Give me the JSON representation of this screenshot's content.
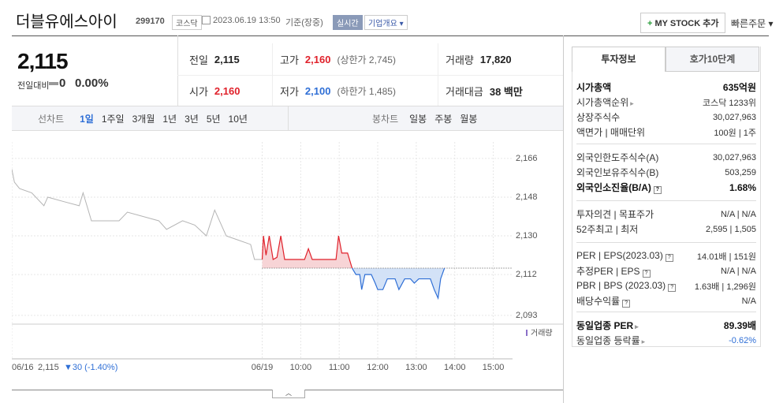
{
  "header": {
    "name": "더블유에스아이",
    "code": "299170",
    "market": "코스닥",
    "datetime": "2023.06.19 13:50",
    "basis": "기준(장중)",
    "realtime": "실시간",
    "company_overview": "기업개요",
    "my_stock": "MY STOCK 추가",
    "quick_order": "빠른주문"
  },
  "price": {
    "current": "2,115",
    "change_label": "전일대비",
    "change": "0",
    "change_rate": "0.00%"
  },
  "summary": [
    {
      "label": "전일",
      "value": "2,115"
    },
    {
      "label": "고가",
      "value": "2,160",
      "note": "(상한가 2,745)",
      "color": "#e0212b"
    },
    {
      "label": "거래량",
      "value": "17,820"
    },
    {
      "label": "시가",
      "value": "2,160",
      "color": "#e0212b"
    },
    {
      "label": "저가",
      "value": "2,100",
      "note": "(하한가 1,485)",
      "color": "#2f6fd6"
    },
    {
      "label": "거래대금",
      "value": "38 백만"
    }
  ],
  "chart_tabs": {
    "line_label": "선차트",
    "line_periods": [
      "1일",
      "1주일",
      "3개월",
      "1년",
      "3년",
      "5년",
      "10년"
    ],
    "active_period": 0,
    "candle_label": "봉차트",
    "candle_periods": [
      "일봉",
      "주봉",
      "월봉"
    ]
  },
  "chart_data": {
    "type": "line",
    "volume_label": "거래량",
    "prev_close": "2,115",
    "prev_change": "▼30 (-1.40%)",
    "xlim": [
      0,
      780
    ],
    "xticks": [
      {
        "value": 0,
        "label": "06/16"
      },
      {
        "value": 390,
        "label": "06/19"
      },
      {
        "value": 450,
        "label": "10:00"
      },
      {
        "value": 510,
        "label": "11:00"
      },
      {
        "value": 570,
        "label": "12:00"
      },
      {
        "value": 630,
        "label": "13:00"
      },
      {
        "value": 690,
        "label": "14:00"
      },
      {
        "value": 750,
        "label": "15:00"
      }
    ],
    "ylim": [
      2089.3,
      2170
    ],
    "yticks": [
      {
        "value": 2093,
        "label": "2,093"
      },
      {
        "value": 2112,
        "label": "2,112"
      },
      {
        "value": 2130,
        "label": "2,130"
      },
      {
        "value": 2148,
        "label": "2,148"
      },
      {
        "value": 2166,
        "label": "2,166"
      }
    ],
    "baseline": 2115,
    "grid": true,
    "series": [
      {
        "color": "#b4b4b4",
        "x": [
          0,
          4,
          12,
          31,
          50,
          56,
          80,
          105,
          111,
          124,
          167,
          180,
          229,
          241,
          266,
          285,
          303,
          316,
          334,
          353,
          372,
          378,
          390
        ],
        "values": [
          2161,
          2155,
          2152,
          2150,
          2144,
          2148,
          2146,
          2144,
          2150,
          2137,
          2137,
          2141,
          2137,
          2133,
          2137,
          2135,
          2130,
          2142,
          2130,
          2128,
          2126,
          2119,
          2119
        ]
      },
      {
        "color_up": "#e0212b",
        "color_down": "#2f6fd6",
        "fill_up": "#f7d4d6",
        "fill_down": "#d3e2f7",
        "x": [
          390,
          392,
          396,
          401,
          407,
          413,
          419,
          425,
          456,
          462,
          468,
          487,
          505,
          509,
          514,
          523,
          530,
          536,
          542,
          545,
          550,
          560,
          566,
          570,
          578,
          585,
          597,
          603,
          612,
          621,
          627,
          634,
          652,
          658,
          664,
          668,
          674
        ],
        "values": [
          2119,
          2130,
          2121,
          2130,
          2119,
          2120,
          2130,
          2119,
          2119,
          2124,
          2119,
          2119,
          2119,
          2130,
          2122,
          2122,
          2115,
          2112,
          2112,
          2105,
          2112,
          2112,
          2108,
          2105,
          2105,
          2110,
          2110,
          2105,
          2110,
          2110,
          2108,
          2110,
          2110,
          2105,
          2101,
          2110,
          2115
        ]
      }
    ]
  },
  "invest_panel": {
    "tabs": [
      "투자정보",
      "호가10단계"
    ],
    "active_tab": 0,
    "groups": [
      [
        {
          "label": "시가총액",
          "value": "635억원",
          "bold": true
        },
        {
          "label": "시가총액순위",
          "value": "코스닥 1233위",
          "icon": "arrow"
        },
        {
          "label": "상장주식수",
          "value": "30,027,963"
        },
        {
          "label": "액면가 | 매매단위",
          "value": "100원 | 1주"
        }
      ],
      [
        {
          "label": "외국인한도주식수(A)",
          "value": "30,027,963"
        },
        {
          "label": "외국인보유주식수(B)",
          "value": "503,259"
        },
        {
          "label": "외국인소진율(B/A)",
          "value": "1.68%",
          "bold": true,
          "icon": "help"
        }
      ],
      [
        {
          "label": "투자의견 | 목표주가",
          "value": "N/A | N/A"
        },
        {
          "label": "52주최고 | 최저",
          "value": "2,595 | 1,505"
        }
      ],
      [
        {
          "label": "PER | EPS(2023.03)",
          "value": "14.01배 | 151원",
          "icon": "help"
        },
        {
          "label": "추정PER | EPS",
          "value": "N/A | N/A",
          "icon": "help"
        },
        {
          "label": "PBR | BPS (2023.03)",
          "value": "1.63배 | 1,296원",
          "icon": "help"
        },
        {
          "label": "배당수익률",
          "value": "N/A",
          "icon": "help"
        }
      ],
      [
        {
          "label": "동일업종 PER",
          "value": "89.39배",
          "bold": true,
          "icon": "arrow"
        },
        {
          "label": "동일업종 등락률",
          "value": "-0.62%",
          "icon": "arrow",
          "color": "#2f6fd6"
        }
      ]
    ]
  }
}
